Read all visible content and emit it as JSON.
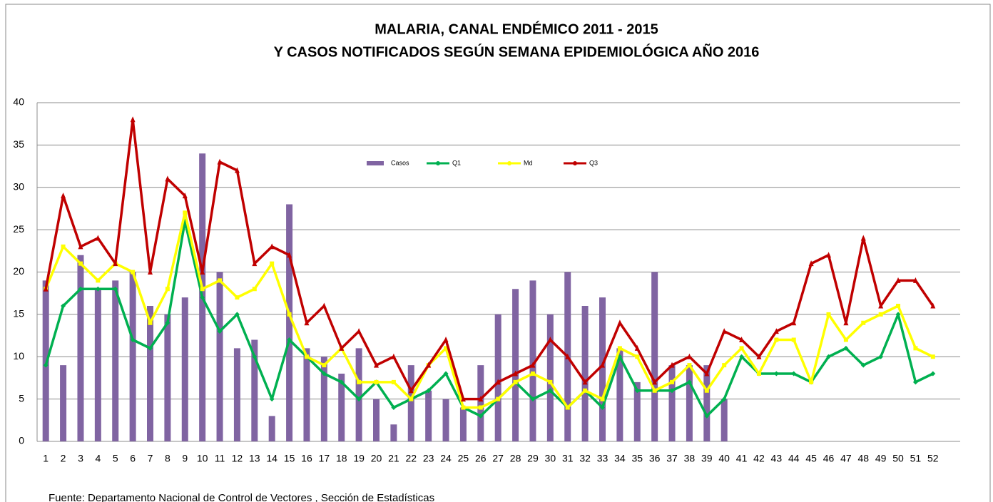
{
  "chart_data": {
    "type": "bar-line",
    "title": "MALARIA, CANAL ENDÉMICO 2011 - 2015",
    "subtitle": "Y CASOS NOTIFICADOS SEGÚN SEMANA EPIDEMIOLÓGICA AÑO 2016",
    "note": "Fuente: Departamento Nacional de Control de Vectores , Sección de Estadísticas",
    "categories": [
      "1",
      "2",
      "3",
      "4",
      "5",
      "6",
      "7",
      "8",
      "9",
      "10",
      "11",
      "12",
      "13",
      "14",
      "15",
      "16",
      "17",
      "18",
      "19",
      "20",
      "21",
      "22",
      "23",
      "24",
      "25",
      "26",
      "27",
      "28",
      "29",
      "30",
      "31",
      "32",
      "33",
      "34",
      "35",
      "36",
      "37",
      "38",
      "39",
      "40",
      "41",
      "42",
      "43",
      "44",
      "45",
      "46",
      "47",
      "48",
      "49",
      "50",
      "51",
      "52"
    ],
    "series": [
      {
        "name": "Casos",
        "kind": "bar",
        "color": "#8064a2",
        "values": [
          19,
          9,
          22,
          18,
          19,
          20,
          16,
          15,
          17,
          34,
          20,
          11,
          12,
          3,
          28,
          11,
          10,
          8,
          11,
          5,
          2,
          9,
          6,
          5,
          4,
          9,
          15,
          18,
          19,
          15,
          20,
          16,
          17,
          11,
          7,
          20,
          9,
          9,
          9,
          5,
          null,
          null,
          null,
          null,
          null,
          null,
          null,
          null,
          null,
          null,
          null,
          null
        ]
      },
      {
        "name": "Q1",
        "kind": "line",
        "marker": "diamond",
        "color": "#00b050",
        "values": [
          9,
          16,
          18,
          18,
          18,
          12,
          11,
          14,
          26,
          17,
          13,
          15,
          10,
          5,
          12,
          10,
          8,
          7,
          5,
          7,
          4,
          5,
          6,
          8,
          4,
          3,
          5,
          7,
          5,
          6,
          4,
          6,
          4,
          10,
          6,
          6,
          6,
          7,
          3,
          5,
          10,
          8,
          8,
          8,
          7,
          10,
          11,
          9,
          10,
          15,
          7,
          8
        ]
      },
      {
        "name": "Md",
        "kind": "line",
        "marker": "square",
        "color": "#ffff00",
        "values": [
          18,
          23,
          21,
          19,
          21,
          20,
          14,
          18,
          27,
          18,
          19,
          17,
          18,
          21,
          15,
          10,
          9,
          11,
          7,
          7,
          7,
          5,
          9,
          11,
          4,
          4,
          5,
          7,
          8,
          7,
          4,
          6,
          5,
          11,
          10,
          6,
          7,
          9,
          6,
          9,
          11,
          8,
          12,
          12,
          7,
          15,
          12,
          14,
          15,
          16,
          11,
          10
        ]
      },
      {
        "name": "Q3",
        "kind": "line",
        "marker": "triangle",
        "color": "#c00000",
        "values": [
          18,
          29,
          23,
          24,
          21,
          38,
          20,
          31,
          29,
          20,
          33,
          32,
          21,
          23,
          22,
          14,
          16,
          11,
          13,
          9,
          10,
          6,
          9,
          12,
          5,
          5,
          7,
          8,
          9,
          12,
          10,
          7,
          9,
          14,
          11,
          7,
          9,
          10,
          8,
          13,
          12,
          10,
          13,
          14,
          21,
          22,
          14,
          24,
          16,
          19,
          19,
          16
        ]
      }
    ],
    "ylim": [
      0,
      40
    ],
    "yticks": [
      0,
      5,
      10,
      15,
      20,
      25,
      30,
      35,
      40
    ],
    "grid": true,
    "legend": "top"
  }
}
